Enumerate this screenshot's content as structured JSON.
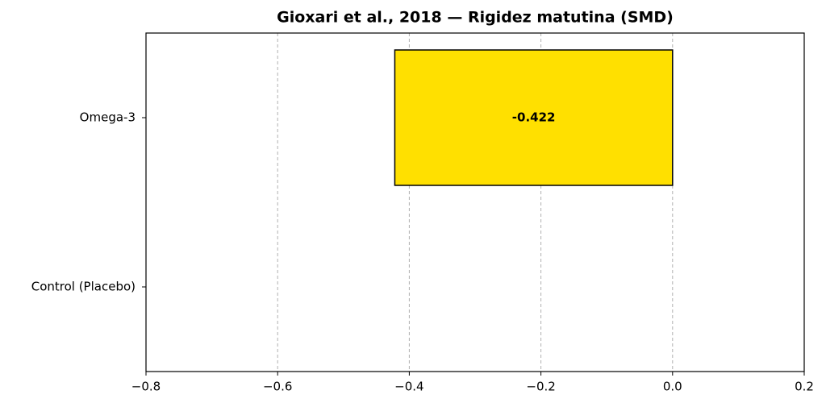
{
  "chart_data": {
    "type": "hbar",
    "title": "Gioxari et al., 2018 — Rigidez matutina (SMD)",
    "categories": [
      "Omega-3",
      "Control (Placebo)"
    ],
    "values": [
      -0.422,
      0
    ],
    "value_labels": [
      "-0.422",
      null
    ],
    "color": "#ffe000",
    "xlim": [
      -0.8,
      0.2
    ],
    "xticks": [
      {
        "value": -0.8,
        "label": "−0.8"
      },
      {
        "value": -0.6,
        "label": "−0.6"
      },
      {
        "value": -0.4,
        "label": "−0.4"
      },
      {
        "value": -0.2,
        "label": "−0.2"
      },
      {
        "value": 0.0,
        "label": "0.0"
      },
      {
        "value": 0.2,
        "label": "0.2"
      }
    ],
    "grid": true
  }
}
